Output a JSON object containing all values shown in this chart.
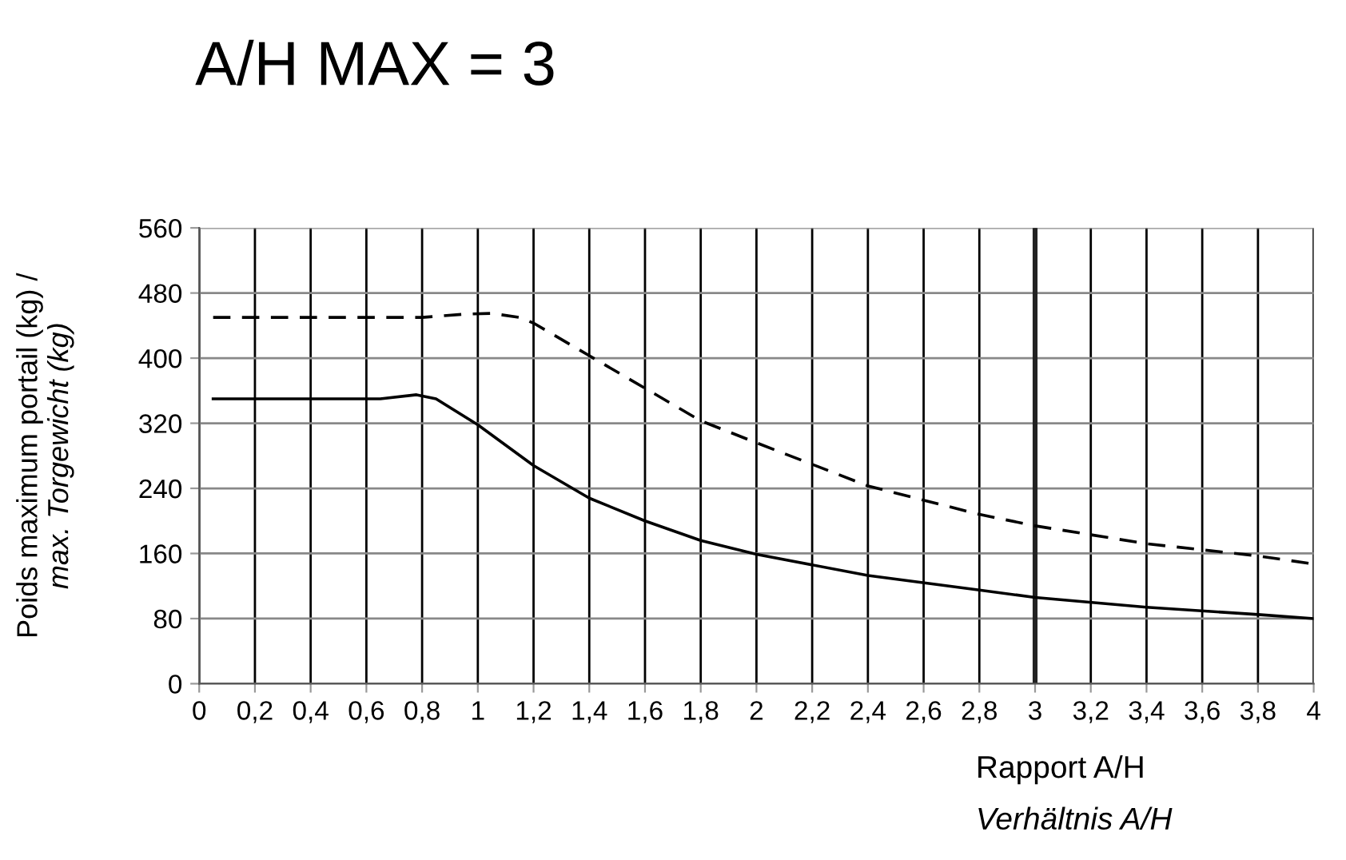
{
  "chart_data": {
    "type": "line",
    "title": "A/H MAX = 3",
    "xlabel": "Rapport A/H\nVerhältnis A/H",
    "ylabel": "Poids maximum portail (kg) /\nmax. Torgewicht (kg)",
    "series": [
      {
        "color": "#000000",
        "line_style": "dashed",
        "x": [
          0.05,
          0.4,
          0.8,
          0.95,
          1.05,
          1.15,
          1.2,
          1.4,
          1.6,
          1.8,
          2.0,
          2.4,
          2.8,
          3.0,
          3.4,
          3.8,
          4.0
        ],
        "values": [
          450,
          450,
          450,
          454,
          455,
          450,
          443,
          403,
          363,
          323,
          296,
          243,
          208,
          194,
          172,
          157,
          147
        ]
      },
      {
        "color": "#000000",
        "line_style": "solid",
        "x": [
          0.05,
          0.4,
          0.65,
          0.78,
          0.85,
          1.0,
          1.2,
          1.4,
          1.6,
          1.8,
          2.0,
          2.4,
          2.8,
          3.0,
          3.4,
          3.8,
          4.0
        ],
        "values": [
          350,
          350,
          350,
          355,
          350,
          318,
          268,
          228,
          200,
          176,
          159,
          133,
          115,
          106,
          94,
          85,
          80
        ]
      }
    ],
    "xlim": [
      0,
      4
    ],
    "ylim": [
      0,
      560
    ],
    "xticks": [
      0,
      {
        "value": 0.2,
        "label": "0,2"
      },
      {
        "value": 0.4,
        "label": "0,4"
      },
      {
        "value": 0.6,
        "label": "0,6"
      },
      {
        "value": 0.8,
        "label": "0,8"
      },
      1,
      {
        "value": 1.2,
        "label": "1,2"
      },
      {
        "value": 1.4,
        "label": "1,4"
      },
      {
        "value": 1.6,
        "label": "1,6"
      },
      {
        "value": 1.8,
        "label": "1,8"
      },
      2,
      {
        "value": 2.2,
        "label": "2,2"
      },
      {
        "value": 2.4,
        "label": "2,4"
      },
      {
        "value": 2.6,
        "label": "2,6"
      },
      {
        "value": 2.8,
        "label": "2,8"
      },
      3,
      {
        "value": 3.2,
        "label": "3,2"
      },
      {
        "value": 3.4,
        "label": "3,4"
      },
      {
        "value": 3.6,
        "label": "3,6"
      },
      {
        "value": 3.8,
        "label": "3,8"
      },
      4
    ],
    "yticks": [
      0,
      80,
      160,
      240,
      320,
      400,
      480,
      560
    ],
    "ref_lines": [
      {
        "axis": "x",
        "value": 3,
        "color": "#222222"
      }
    ],
    "grid": true,
    "marker": "none"
  }
}
